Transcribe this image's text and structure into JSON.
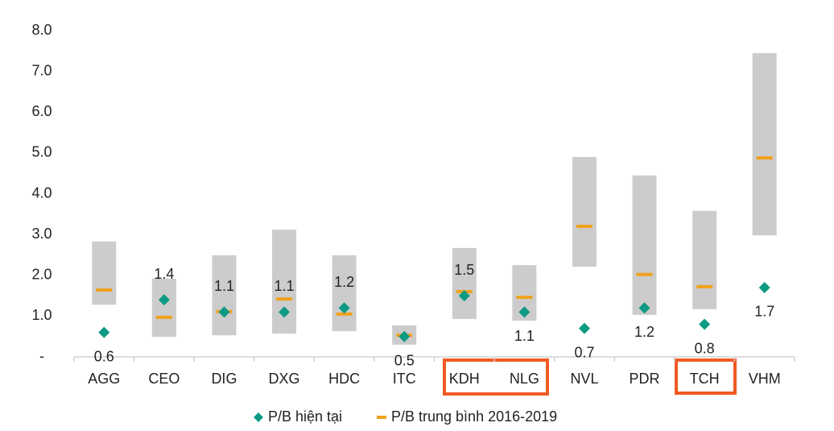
{
  "chart_data": {
    "type": "range-marker",
    "categories": [
      "AGG",
      "CEO",
      "DIG",
      "DXG",
      "HDC",
      "ITC",
      "KDH",
      "NLG",
      "NVL",
      "PDR",
      "TCH",
      "VHM"
    ],
    "range": {
      "color": "#cccccc",
      "low": [
        1.28,
        0.49,
        0.53,
        0.57,
        0.63,
        0.3,
        0.93,
        0.89,
        2.21,
        1.03,
        1.17,
        2.98
      ],
      "high": [
        2.83,
        1.92,
        2.49,
        3.12,
        2.49,
        0.77,
        2.67,
        2.25,
        4.9,
        4.45,
        3.58,
        7.45
      ]
    },
    "series": [
      {
        "name": "P/B hiện tại",
        "color": "#0e9a84",
        "marker": "diamond",
        "values": [
          0.6,
          1.4,
          1.1,
          1.1,
          1.2,
          0.5,
          1.5,
          1.1,
          0.7,
          1.2,
          0.8,
          1.7
        ]
      },
      {
        "name": "P/B trung bình 2016-2019",
        "color": "#f0a21e",
        "marker": "dash",
        "values": [
          1.64,
          0.97,
          1.11,
          1.42,
          1.05,
          0.53,
          1.6,
          1.46,
          3.2,
          2.02,
          1.72,
          4.88
        ]
      }
    ],
    "ylim": [
      0,
      8
    ],
    "yticks": [
      {
        "value": 0,
        "label": "-"
      },
      {
        "value": 1,
        "label": "1.0"
      },
      {
        "value": 2,
        "label": "2.0"
      },
      {
        "value": 3,
        "label": "3.0"
      },
      {
        "value": 4,
        "label": "4.0"
      },
      {
        "value": 5,
        "label": "5.0"
      },
      {
        "value": 6,
        "label": "6.0"
      },
      {
        "value": 7,
        "label": "7.0"
      },
      {
        "value": 8,
        "label": "8.0"
      }
    ],
    "grid": false
  }
}
